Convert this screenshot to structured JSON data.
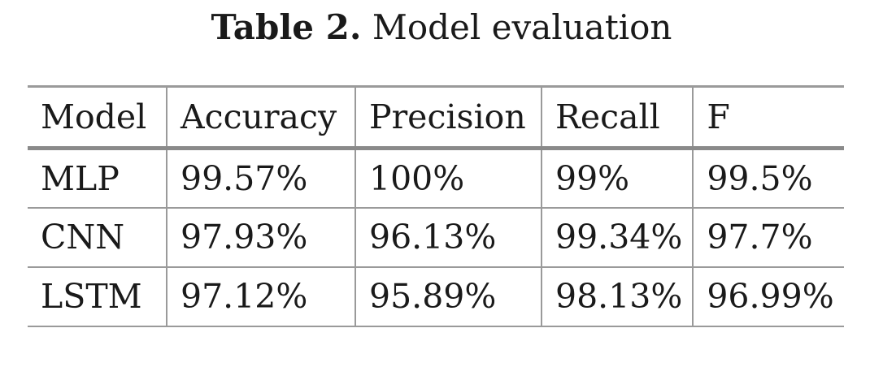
{
  "caption": {
    "label": "Table 2.",
    "text": "Model evaluation"
  },
  "table": {
    "headers": [
      "Model",
      "Accuracy",
      "Precision",
      "Recall",
      "F"
    ],
    "rows": [
      [
        "MLP",
        "99.57%",
        "100%",
        "99%",
        "99.5%"
      ],
      [
        "CNN",
        "97.93%",
        "96.13%",
        "99.34%",
        "97.7%"
      ],
      [
        "LSTM",
        "97.12%",
        "95.89%",
        "98.13%",
        "96.99%"
      ]
    ]
  }
}
